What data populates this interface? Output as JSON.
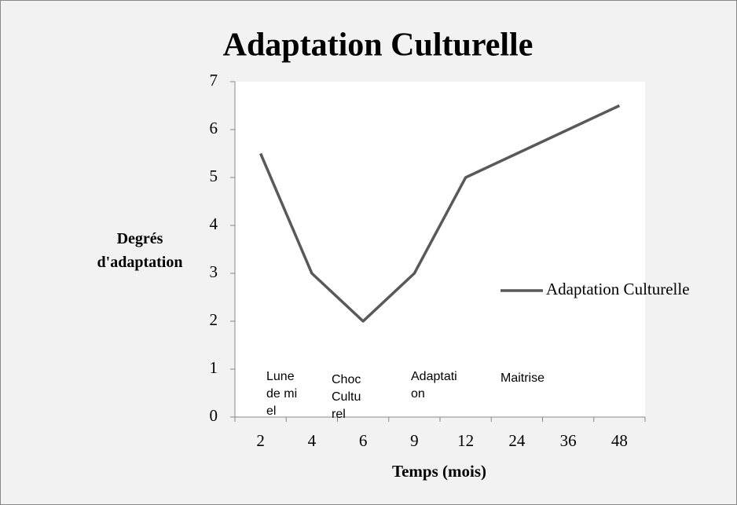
{
  "chart_data": {
    "type": "line",
    "title": "Adaptation Culturelle",
    "x_label": "Temps (mois)",
    "y_label": "Degrés d'adaptation",
    "categories": [
      "2",
      "4",
      "6",
      "9",
      "12",
      "24",
      "36",
      "48"
    ],
    "series": [
      {
        "name": "Adaptation Culturelle",
        "color": "#595959",
        "values": [
          5.5,
          3,
          2,
          3,
          5,
          5.5,
          6,
          6.5
        ]
      }
    ],
    "ylim": [
      0,
      7
    ],
    "yticks": [
      0,
      1,
      2,
      3,
      4,
      5,
      6,
      7
    ],
    "legend": "right",
    "annotations": [
      "Lune de miel",
      "Choc Culturel",
      "Adaptation",
      "Maitrise"
    ]
  }
}
